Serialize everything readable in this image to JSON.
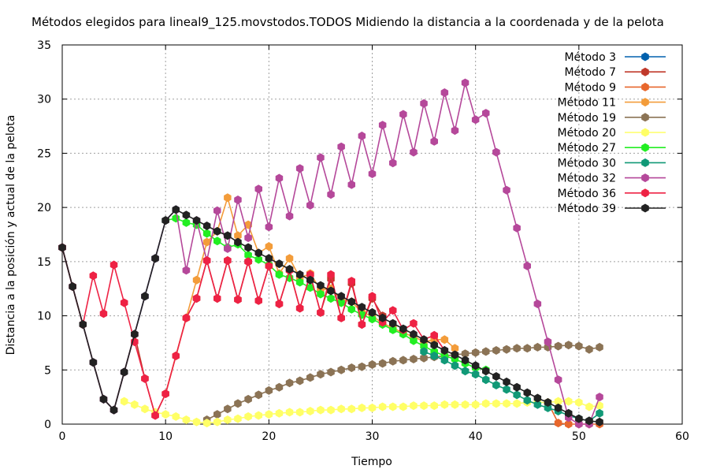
{
  "chart_data": {
    "type": "line",
    "title": "Métodos elegidos para lineal9_125.movstodos.TODOS Midiendo la distancia a la coordenada y de la pelota",
    "xlabel": "Tiempo",
    "ylabel": "Distancia a la posición y actual de la pelota",
    "xlim": [
      0,
      60
    ],
    "ylim": [
      0,
      35
    ],
    "xticks": [
      0,
      10,
      20,
      30,
      40,
      50,
      60
    ],
    "yticks": [
      0,
      5,
      10,
      15,
      20,
      25,
      30,
      35
    ],
    "grid": true,
    "legend_position": "top-right",
    "series": [
      {
        "name": "Método 3",
        "color": "#0060ad",
        "x": [
          0,
          1,
          2,
          3,
          4,
          5,
          6,
          7,
          8,
          9,
          10,
          11
        ],
        "y": [
          16.3,
          12.7,
          9.2,
          5.7,
          2.3,
          1.3,
          4.8,
          8.3,
          11.8,
          15.3,
          18.8,
          19.8
        ]
      },
      {
        "name": "Método 7",
        "color": "#c0392b",
        "x": [
          0,
          1,
          2,
          3,
          4,
          5,
          6,
          7,
          8,
          9,
          10,
          11,
          12,
          13,
          14,
          15,
          16,
          17,
          18,
          19,
          20,
          21,
          22,
          23,
          24,
          25,
          26,
          27,
          28,
          29,
          30,
          31
        ],
        "y": [
          16.3,
          12.7,
          9.2,
          5.7,
          2.3,
          1.3,
          4.8,
          8.3,
          4.2,
          0.8,
          2.8,
          6.3,
          9.8,
          11.6,
          15.1,
          11.6,
          15.1,
          11.5,
          15.0,
          11.4,
          14.6,
          11.1,
          14.2,
          10.7,
          13.8,
          10.3,
          13.4,
          9.8,
          13.0,
          9.2,
          11.6,
          10.0
        ]
      },
      {
        "name": "Método 9",
        "color": "#e8672c",
        "x": [
          47,
          48,
          49,
          50,
          51,
          52
        ],
        "y": [
          2.0,
          0.1,
          0.0,
          0.0,
          0.0,
          0.0
        ]
      },
      {
        "name": "Método 11",
        "color": "#f39c3a",
        "x": [
          10,
          11,
          12,
          13,
          14,
          15,
          16,
          17,
          18,
          19,
          20,
          21,
          22,
          23,
          24,
          25,
          26,
          27,
          28,
          29,
          30,
          31,
          32,
          33,
          34,
          35,
          36,
          37,
          38
        ],
        "y": [
          2.8,
          6.3,
          9.8,
          13.3,
          16.8,
          17.8,
          20.9,
          17.4,
          18.4,
          15.8,
          16.4,
          13.9,
          15.3,
          13.5,
          13.9,
          12.4,
          12.5,
          11.5,
          11.3,
          10.3,
          10.0,
          9.3,
          8.9,
          8.4,
          8.1,
          7.6,
          7.8,
          7.8,
          7.0
        ]
      },
      {
        "name": "Método 19",
        "color": "#8b7355",
        "x": [
          14,
          15,
          16,
          17,
          18,
          19,
          20,
          21,
          22,
          23,
          24,
          25,
          26,
          27,
          28,
          29,
          30,
          31,
          32,
          33,
          34,
          35,
          36,
          37,
          38,
          39,
          40,
          41,
          42,
          43,
          44,
          45,
          46,
          47,
          48,
          49,
          50,
          51,
          52
        ],
        "y": [
          0.4,
          0.9,
          1.4,
          1.9,
          2.3,
          2.7,
          3.1,
          3.4,
          3.8,
          4.0,
          4.3,
          4.6,
          4.8,
          5.0,
          5.2,
          5.3,
          5.5,
          5.6,
          5.8,
          5.9,
          6.0,
          6.1,
          6.2,
          6.3,
          6.4,
          6.5,
          6.6,
          6.7,
          6.8,
          6.9,
          7.0,
          7.0,
          7.1,
          7.1,
          7.2,
          7.3,
          7.2,
          6.9,
          7.1
        ]
      },
      {
        "name": "Método 20",
        "color": "#ffff66",
        "x": [
          6,
          7,
          8,
          9,
          10,
          11,
          12,
          13,
          14,
          15,
          16,
          17,
          18,
          19,
          20,
          21,
          22,
          23,
          24,
          25,
          26,
          27,
          28,
          29,
          30,
          31,
          32,
          33,
          34,
          35,
          36,
          37,
          38,
          39,
          40,
          41,
          42,
          43,
          44,
          45,
          46,
          47,
          48,
          49,
          50,
          51,
          52
        ],
        "y": [
          2.1,
          1.8,
          1.4,
          1.1,
          0.9,
          0.7,
          0.4,
          0.2,
          0.1,
          0.2,
          0.4,
          0.5,
          0.7,
          0.8,
          0.9,
          1.0,
          1.1,
          1.1,
          1.2,
          1.3,
          1.3,
          1.4,
          1.4,
          1.5,
          1.5,
          1.6,
          1.6,
          1.6,
          1.7,
          1.7,
          1.7,
          1.8,
          1.8,
          1.8,
          1.8,
          1.9,
          1.9,
          1.9,
          1.9,
          2.0,
          2.0,
          2.0,
          2.1,
          2.1,
          2.0,
          1.6,
          1.7
        ]
      },
      {
        "name": "Método 27",
        "color": "#22ee22",
        "x": [
          10,
          11,
          12,
          13,
          14,
          15,
          16,
          17,
          18,
          19,
          20,
          21,
          22,
          23,
          24,
          25,
          26,
          27,
          28,
          29,
          30,
          31,
          32,
          33,
          34,
          35,
          36,
          37,
          38,
          39,
          40,
          41
        ],
        "y": [
          18.8,
          19.0,
          18.6,
          18.4,
          17.6,
          16.9,
          16.3,
          16.6,
          15.6,
          15.2,
          14.7,
          13.8,
          13.5,
          13.1,
          12.6,
          12.0,
          11.6,
          11.2,
          10.6,
          10.1,
          9.7,
          9.2,
          8.7,
          8.3,
          7.7,
          7.2,
          6.7,
          6.3,
          6.0,
          5.6,
          5.2,
          5.0
        ]
      },
      {
        "name": "Método 30",
        "color": "#119977",
        "x": [
          35,
          36,
          37,
          38,
          39,
          40,
          41,
          42,
          43,
          44,
          45,
          46,
          47,
          48,
          49,
          50,
          51,
          52
        ],
        "y": [
          6.7,
          6.3,
          5.9,
          5.4,
          4.9,
          4.6,
          4.1,
          3.6,
          3.2,
          2.7,
          2.2,
          1.8,
          1.5,
          1.2,
          0.8,
          0.5,
          0.3,
          1.0
        ]
      },
      {
        "name": "Método 32",
        "color": "#b5489a",
        "x": [
          0,
          1,
          2,
          3,
          4,
          5,
          6,
          7,
          8,
          9,
          10,
          11,
          12,
          13,
          14,
          15,
          16,
          17,
          18,
          19,
          20,
          21,
          22,
          23,
          24,
          25,
          26,
          27,
          28,
          29,
          30,
          31,
          32,
          33,
          34,
          35,
          36,
          37,
          38,
          39,
          40,
          41,
          42,
          43,
          44,
          45,
          46,
          47,
          48,
          49,
          50,
          51,
          52
        ],
        "y": [
          16.3,
          12.7,
          9.2,
          5.7,
          2.3,
          1.3,
          4.8,
          8.3,
          11.8,
          15.3,
          18.8,
          19.8,
          14.2,
          18.8,
          15.1,
          19.7,
          16.2,
          20.7,
          17.2,
          21.7,
          18.2,
          22.7,
          19.2,
          23.6,
          20.2,
          24.6,
          21.2,
          25.6,
          22.1,
          26.6,
          23.1,
          27.6,
          24.1,
          28.6,
          25.1,
          29.6,
          26.1,
          30.6,
          27.1,
          31.5,
          28.1,
          28.7,
          25.1,
          21.6,
          18.1,
          14.6,
          11.1,
          7.6,
          4.1,
          0.6,
          0.0,
          0.0,
          2.5
        ]
      },
      {
        "name": "Método 36",
        "color": "#ee2244",
        "x": [
          0,
          1,
          2,
          3,
          4,
          5,
          6,
          7,
          8,
          9,
          10,
          11,
          12,
          13,
          14,
          15,
          16,
          17,
          18,
          19,
          20,
          21,
          22,
          23,
          24,
          25,
          26,
          27,
          28,
          29,
          30,
          31,
          32,
          33,
          34,
          35,
          36,
          37
        ],
        "y": [
          16.3,
          12.7,
          9.2,
          13.7,
          10.2,
          14.7,
          11.2,
          7.6,
          4.2,
          0.8,
          2.8,
          6.3,
          9.8,
          11.6,
          15.1,
          11.6,
          15.1,
          11.5,
          15.0,
          11.4,
          14.6,
          11.1,
          14.2,
          10.7,
          13.8,
          10.3,
          13.8,
          9.8,
          13.2,
          9.2,
          11.8,
          9.4,
          10.5,
          8.7,
          9.3,
          7.8,
          8.2,
          6.8
        ]
      },
      {
        "name": "Método 39",
        "color": "#222222",
        "x": [
          0,
          1,
          2,
          3,
          4,
          5,
          6,
          7,
          8,
          9,
          10,
          11,
          12,
          13,
          14,
          15,
          16,
          17,
          18,
          19,
          20,
          21,
          22,
          23,
          24,
          25,
          26,
          27,
          28,
          29,
          30,
          31,
          32,
          33,
          34,
          35,
          36,
          37,
          38,
          39,
          40,
          41,
          42,
          43,
          44,
          45,
          46,
          47,
          48,
          49,
          50,
          51,
          52
        ],
        "y": [
          16.3,
          12.7,
          9.2,
          5.7,
          2.3,
          1.3,
          4.8,
          8.3,
          11.8,
          15.3,
          18.8,
          19.8,
          19.3,
          18.8,
          18.3,
          17.8,
          17.4,
          16.8,
          16.3,
          15.8,
          15.3,
          14.8,
          14.3,
          13.8,
          13.3,
          12.8,
          12.3,
          11.8,
          11.3,
          10.8,
          10.3,
          9.8,
          9.3,
          8.8,
          8.3,
          7.8,
          7.3,
          6.8,
          6.4,
          5.9,
          5.4,
          4.9,
          4.4,
          3.9,
          3.4,
          2.9,
          2.4,
          2.0,
          1.5,
          1.0,
          0.5,
          0.3,
          0.2
        ]
      }
    ]
  }
}
